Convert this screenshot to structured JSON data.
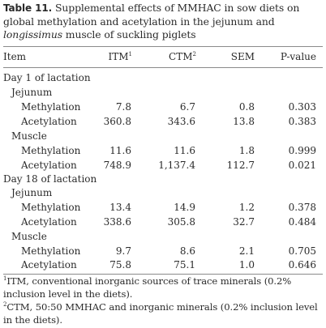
{
  "table": {
    "number": "Table 11.",
    "caption_before_italic": " Supplemental effects of MMHAC in sow diets on global methylation and acetylation in the jejunum and ",
    "caption_italic": "longissimus",
    "caption_after_italic": " muscle of suckling piglets",
    "columns": {
      "item": "Item",
      "itm": "ITM",
      "itm_sup": "1",
      "ctm": "CTM",
      "ctm_sup": "2",
      "sem": "SEM",
      "pvalue": "P-value"
    },
    "sections": [
      {
        "label": "Day 1 of lactation",
        "tissues": [
          {
            "label": "Jejunum",
            "rows": [
              {
                "item": "Methylation",
                "itm": "7.8",
                "ctm": "6.7",
                "sem": "0.8",
                "p": "0.303"
              },
              {
                "item": "Acetylation",
                "itm": "360.8",
                "ctm": "343.6",
                "sem": "13.8",
                "p": "0.383"
              }
            ]
          },
          {
            "label": "Muscle",
            "rows": [
              {
                "item": "Methylation",
                "itm": "11.6",
                "ctm": "11.6",
                "sem": "1.8",
                "p": "0.999"
              },
              {
                "item": "Acetylation",
                "itm": "748.9",
                "ctm": "1,137.4",
                "sem": "112.7",
                "p": "0.021"
              }
            ]
          }
        ]
      },
      {
        "label": "Day 18 of lactation",
        "tissues": [
          {
            "label": "Jejunum",
            "rows": [
              {
                "item": "Methylation",
                "itm": "13.4",
                "ctm": "14.9",
                "sem": "1.2",
                "p": "0.378"
              },
              {
                "item": "Acetylation",
                "itm": "338.6",
                "ctm": "305.8",
                "sem": "32.7",
                "p": "0.484"
              }
            ]
          },
          {
            "label": "Muscle",
            "rows": [
              {
                "item": "Methylation",
                "itm": "9.7",
                "ctm": "8.6",
                "sem": "2.1",
                "p": "0.705"
              },
              {
                "item": "Acetylation",
                "itm": "75.8",
                "ctm": "75.1",
                "sem": "1.0",
                "p": "0.646"
              }
            ]
          }
        ]
      }
    ],
    "footnotes": [
      {
        "mark": "1",
        "text": "ITM, conventional inorganic sources of trace minerals (0.2% inclusion level in the diets)."
      },
      {
        "mark": "2",
        "text": "CTM, 50:50 MMHAC and inorganic minerals (0.2% inclusion level in the diets)."
      }
    ]
  }
}
